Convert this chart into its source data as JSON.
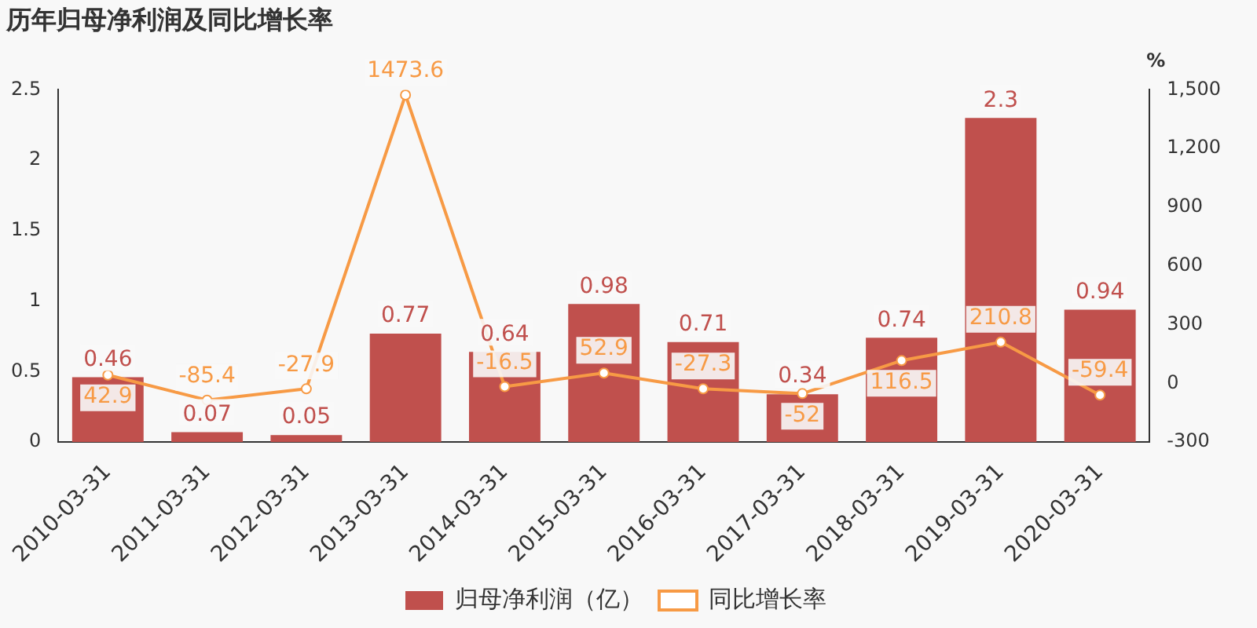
{
  "chart_data": {
    "type": "bar",
    "title": "历年归母净利润及同比增长率",
    "categories": [
      "2010-03-31",
      "2011-03-31",
      "2012-03-31",
      "2013-03-31",
      "2014-03-31",
      "2015-03-31",
      "2016-03-31",
      "2017-03-31",
      "2018-03-31",
      "2019-03-31",
      "2020-03-31"
    ],
    "series": [
      {
        "name": "归母净利润（亿）",
        "color": "#c0504d",
        "values": [
          0.46,
          0.07,
          0.05,
          0.77,
          0.64,
          0.98,
          0.71,
          0.34,
          0.74,
          2.3,
          0.94
        ]
      },
      {
        "name": "同比增长率",
        "type": "line",
        "axis": "y2",
        "color": "#f79a45",
        "values": [
          42.9,
          -85.4,
          -27.9,
          1473.6,
          -16.5,
          52.9,
          -27.3,
          -52,
          116.5,
          210.8,
          -59.4
        ]
      }
    ],
    "y2label": "%",
    "ylim": [
      0,
      2.5
    ],
    "yticks": [
      0,
      0.5,
      1,
      1.5,
      2,
      2.5
    ],
    "y2lim": [
      -300,
      1500
    ],
    "y2ticks": [
      -300,
      0,
      300,
      600,
      900,
      {
        "value": 1200,
        "label": "1,200"
      },
      {
        "value": 1500,
        "label": "1,500"
      }
    ],
    "data_labels": true,
    "grid": false,
    "legend": "bottom",
    "marker": "circle",
    "line_style": "solid"
  }
}
